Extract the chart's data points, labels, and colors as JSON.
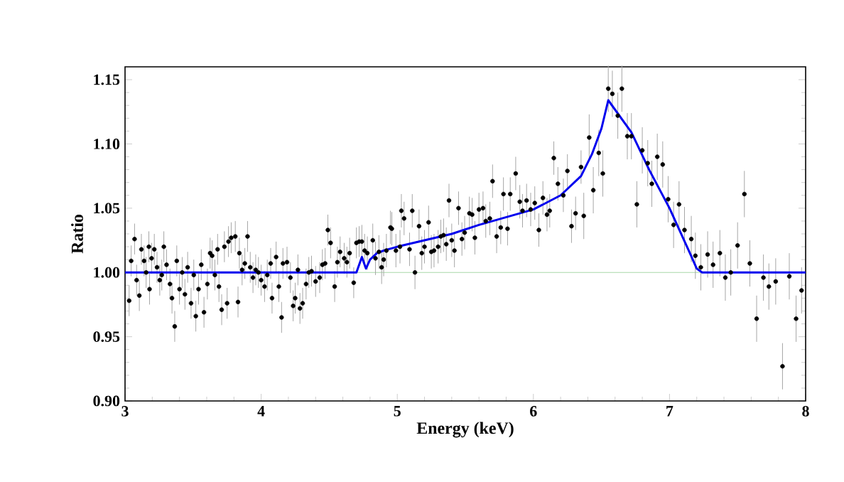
{
  "chart_data": {
    "type": "scatter",
    "xlabel": "Energy (keV)",
    "ylabel": "Ratio",
    "xlim": [
      3,
      8
    ],
    "ylim": [
      0.9,
      1.16
    ],
    "xticks": [
      3,
      4,
      5,
      6,
      7,
      8
    ],
    "yticks": [
      {
        "value": 0.9,
        "label": "0.90"
      },
      {
        "value": 0.95,
        "label": "0.95"
      },
      {
        "value": 1.0,
        "label": "1.00"
      },
      {
        "value": 1.05,
        "label": "1.05"
      },
      {
        "value": 1.1,
        "label": "1.10"
      },
      {
        "value": 1.15,
        "label": "1.15"
      }
    ],
    "ref_lines": [
      {
        "axis": "y",
        "value": 1.0,
        "color": "#a8d8a8"
      }
    ],
    "series": [
      {
        "marker": "circle",
        "color": "#000000",
        "x": [
          3.03,
          3.045,
          3.07,
          3.085,
          3.105,
          3.12,
          3.14,
          3.155,
          3.175,
          3.18,
          3.195,
          3.215,
          3.235,
          3.255,
          3.27,
          3.285,
          3.305,
          3.33,
          3.345,
          3.365,
          3.38,
          3.4,
          3.42,
          3.44,
          3.46,
          3.485,
          3.505,
          3.52,
          3.54,
          3.56,
          3.58,
          3.605,
          3.625,
          3.64,
          3.66,
          3.68,
          3.69,
          3.71,
          3.73,
          3.75,
          3.76,
          3.78,
          3.81,
          3.83,
          3.84,
          3.86,
          3.88,
          3.9,
          3.92,
          3.94,
          3.96,
          3.98,
          4.0,
          4.025,
          4.045,
          4.07,
          4.08,
          4.11,
          4.13,
          4.15,
          4.16,
          4.19,
          4.215,
          4.235,
          4.25,
          4.27,
          4.285,
          4.305,
          4.33,
          4.35,
          4.37,
          4.4,
          4.43,
          4.45,
          4.47,
          4.49,
          4.51,
          4.54,
          4.56,
          4.58,
          4.61,
          4.63,
          4.65,
          4.68,
          4.7,
          4.72,
          4.74,
          4.76,
          4.78,
          4.82,
          4.84,
          4.865,
          4.885,
          4.9,
          4.92,
          4.95,
          4.96,
          4.99,
          5.02,
          5.03,
          5.05,
          5.09,
          5.11,
          5.13,
          5.16,
          5.18,
          5.2,
          5.23,
          5.25,
          5.27,
          5.3,
          5.32,
          5.34,
          5.36,
          5.38,
          5.4,
          5.42,
          5.45,
          5.475,
          5.495,
          5.53,
          5.55,
          5.57,
          5.6,
          5.63,
          5.65,
          5.68,
          5.7,
          5.73,
          5.76,
          5.78,
          5.81,
          5.83,
          5.87,
          5.9,
          5.92,
          5.95,
          5.98,
          6.01,
          6.04,
          6.07,
          6.1,
          6.12,
          6.15,
          6.18,
          6.22,
          6.25,
          6.28,
          6.31,
          6.35,
          6.37,
          6.41,
          6.44,
          6.48,
          6.51,
          6.55,
          6.58,
          6.62,
          6.65,
          6.69,
          6.72,
          6.76,
          6.8,
          6.84,
          6.87,
          6.91,
          6.95,
          6.99,
          7.03,
          7.07,
          7.11,
          7.16,
          7.19,
          7.23,
          7.28,
          7.32,
          7.37,
          7.41,
          7.45,
          7.5,
          7.55,
          7.59,
          7.64,
          7.69,
          7.73,
          7.78,
          7.83,
          7.88,
          7.93,
          7.97
        ],
        "values": [
          0.978,
          1.009,
          1.026,
          0.994,
          0.982,
          1.018,
          1.009,
          1.0,
          1.02,
          0.987,
          1.011,
          1.018,
          1.004,
          0.994,
          0.998,
          1.02,
          1.006,
          0.991,
          0.98,
          0.958,
          1.009,
          0.987,
          1.0,
          0.983,
          1.004,
          0.976,
          0.998,
          0.966,
          0.987,
          1.006,
          0.969,
          0.991,
          1.015,
          1.013,
          0.998,
          1.018,
          0.989,
          0.971,
          1.02,
          0.976,
          1.024,
          1.027,
          1.028,
          0.977,
          1.015,
          1.002,
          1.007,
          1.028,
          1.004,
          0.996,
          1.002,
          1.0,
          0.994,
          0.989,
          0.998,
          1.007,
          0.98,
          1.012,
          0.989,
          0.965,
          1.007,
          1.008,
          0.996,
          0.974,
          0.98,
          1.002,
          0.972,
          0.976,
          0.991,
          1.0,
          1.001,
          0.993,
          0.996,
          1.006,
          1.007,
          1.033,
          1.023,
          0.989,
          1.008,
          1.016,
          1.011,
          1.008,
          1.015,
          0.992,
          1.023,
          1.024,
          1.024,
          1.017,
          1.015,
          1.025,
          1.011,
          1.016,
          1.004,
          1.01,
          1.017,
          1.035,
          1.034,
          1.017,
          1.02,
          1.048,
          1.042,
          1.018,
          1.048,
          1.0,
          1.036,
          1.015,
          1.02,
          1.039,
          1.016,
          1.017,
          1.02,
          1.028,
          1.029,
          1.022,
          1.056,
          1.025,
          1.017,
          1.05,
          1.026,
          1.031,
          1.046,
          1.045,
          1.027,
          1.049,
          1.05,
          1.04,
          1.042,
          1.071,
          1.028,
          1.035,
          1.061,
          1.034,
          1.061,
          1.077,
          1.055,
          1.048,
          1.056,
          1.049,
          1.054,
          1.033,
          1.058,
          1.045,
          1.048,
          1.089,
          1.069,
          1.06,
          1.079,
          1.036,
          1.046,
          1.082,
          1.044,
          1.105,
          1.064,
          1.093,
          1.077,
          1.143,
          1.139,
          1.122,
          1.143,
          1.106,
          1.106,
          1.053,
          1.095,
          1.085,
          1.069,
          1.09,
          1.084,
          1.057,
          1.037,
          1.053,
          1.033,
          1.026,
          1.013,
          1.004,
          1.014,
          1.006,
          1.015,
          0.996,
          1.0,
          1.021,
          1.061,
          1.007,
          0.964,
          0.996,
          0.989,
          0.993,
          0.927,
          0.997,
          0.964,
          0.986
        ],
        "errors": [
          0.012,
          0.012,
          0.012,
          0.012,
          0.012,
          0.012,
          0.012,
          0.012,
          0.012,
          0.012,
          0.012,
          0.012,
          0.012,
          0.012,
          0.012,
          0.012,
          0.012,
          0.012,
          0.012,
          0.012,
          0.012,
          0.012,
          0.012,
          0.012,
          0.012,
          0.012,
          0.012,
          0.012,
          0.012,
          0.012,
          0.012,
          0.012,
          0.012,
          0.012,
          0.012,
          0.012,
          0.012,
          0.012,
          0.012,
          0.012,
          0.012,
          0.012,
          0.012,
          0.012,
          0.012,
          0.012,
          0.012,
          0.012,
          0.012,
          0.012,
          0.012,
          0.012,
          0.012,
          0.012,
          0.012,
          0.012,
          0.012,
          0.012,
          0.012,
          0.012,
          0.012,
          0.012,
          0.012,
          0.012,
          0.012,
          0.012,
          0.012,
          0.012,
          0.012,
          0.012,
          0.012,
          0.012,
          0.012,
          0.012,
          0.012,
          0.012,
          0.012,
          0.012,
          0.012,
          0.012,
          0.012,
          0.012,
          0.012,
          0.012,
          0.012,
          0.012,
          0.013,
          0.013,
          0.013,
          0.013,
          0.013,
          0.013,
          0.013,
          0.013,
          0.013,
          0.013,
          0.013,
          0.013,
          0.013,
          0.013,
          0.013,
          0.013,
          0.013,
          0.013,
          0.013,
          0.013,
          0.013,
          0.013,
          0.013,
          0.013,
          0.013,
          0.013,
          0.013,
          0.013,
          0.013,
          0.013,
          0.013,
          0.013,
          0.013,
          0.013,
          0.013,
          0.013,
          0.013,
          0.013,
          0.013,
          0.013,
          0.013,
          0.013,
          0.013,
          0.013,
          0.013,
          0.013,
          0.013,
          0.013,
          0.013,
          0.013,
          0.013,
          0.013,
          0.013,
          0.013,
          0.013,
          0.013,
          0.013,
          0.013,
          0.013,
          0.013,
          0.013,
          0.013,
          0.013,
          0.013,
          0.018,
          0.018,
          0.018,
          0.018,
          0.018,
          0.018,
          0.018,
          0.018,
          0.018,
          0.018,
          0.018,
          0.018,
          0.018,
          0.018,
          0.018,
          0.018,
          0.018,
          0.018,
          0.018,
          0.018,
          0.018,
          0.018,
          0.018,
          0.018,
          0.018,
          0.018,
          0.018,
          0.018,
          0.018,
          0.018,
          0.018,
          0.018,
          0.018,
          0.018,
          0.018,
          0.018,
          0.018,
          0.018,
          0.018,
          0.018
        ]
      },
      {
        "type": "line",
        "marker": "none",
        "color": "#0000ee",
        "x": [
          3.0,
          4.7,
          4.74,
          4.77,
          4.8,
          4.85,
          4.9,
          5.0,
          5.2,
          5.4,
          5.6,
          5.8,
          6.0,
          6.2,
          6.35,
          6.43,
          6.5,
          6.55,
          6.72,
          6.85,
          7.0,
          7.15,
          7.2,
          7.24,
          8.0
        ],
        "values": [
          1.0,
          1.0,
          1.012,
          1.003,
          1.01,
          1.015,
          1.017,
          1.02,
          1.025,
          1.03,
          1.037,
          1.043,
          1.049,
          1.06,
          1.075,
          1.092,
          1.112,
          1.134,
          1.109,
          1.08,
          1.05,
          1.015,
          1.003,
          1.0,
          1.0
        ]
      }
    ]
  }
}
